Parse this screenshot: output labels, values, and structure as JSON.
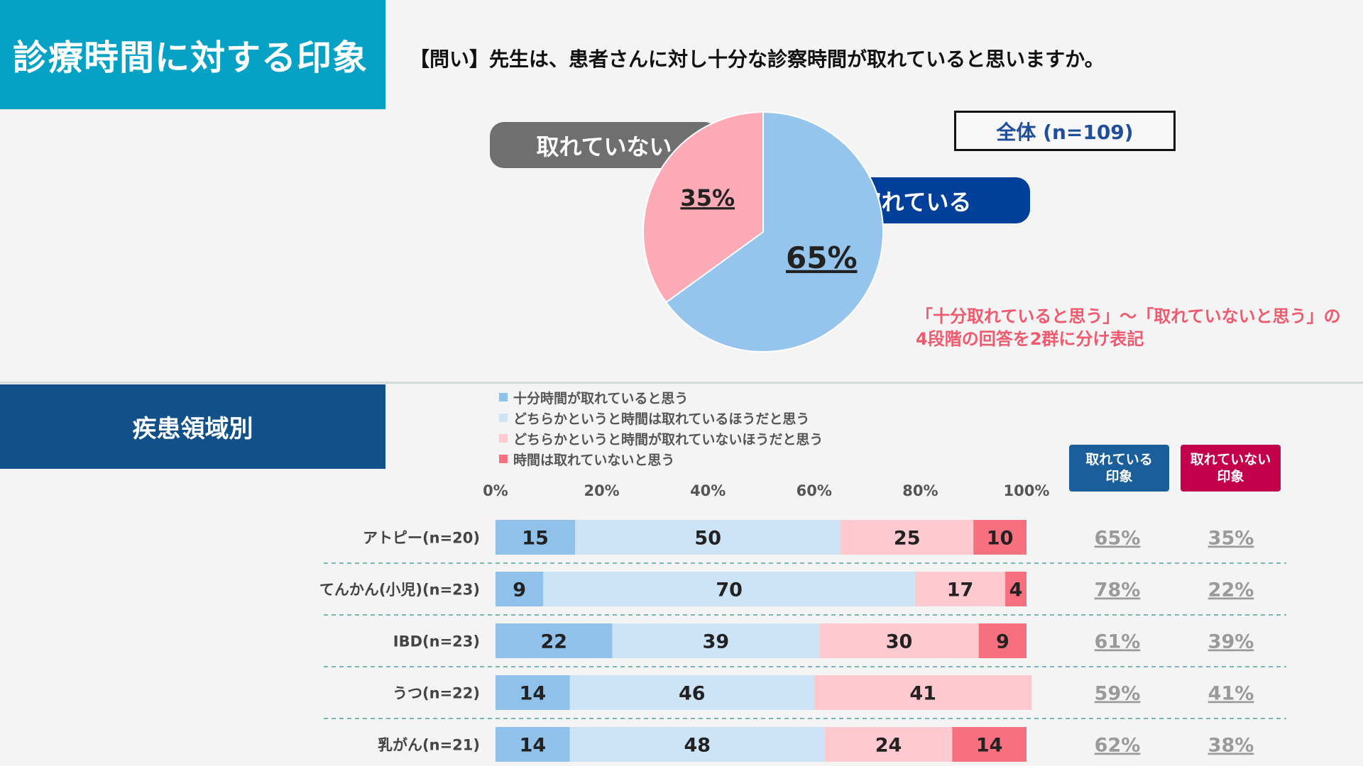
{
  "header": {
    "title": "診療時間に対する印象",
    "question": "【問い】先生は、患者さんに対し十分な診察時間が取れていると思いますか。"
  },
  "pie": {
    "total_label": "全体 (n=109)",
    "label_not": "取れていない",
    "label_yes": "取れている",
    "note_line1": "「十分取れていると思う」〜「取れていないと思う」の",
    "note_line2": "4段階の回答を2群に分け表記"
  },
  "section": {
    "title": "疾患領域別",
    "head_yes_line1": "取れている",
    "head_yes_line2": "印象",
    "head_not_line1": "取れていない",
    "head_not_line2": "印象"
  },
  "colors": {
    "pie_yes": "#95c5ec",
    "pie_not": "#fcaab6",
    "s1": "#8fc1ea",
    "s2": "#cde3f6",
    "s3": "#ffc9d0",
    "s4": "#f7707f",
    "divider": "#7ab8b3"
  },
  "chart_data": [
    {
      "type": "pie",
      "slices": [
        {
          "label": "取れている",
          "value": 65,
          "display": "65%"
        },
        {
          "label": "取れていない",
          "value": 35,
          "display": "35%"
        }
      ]
    },
    {
      "type": "bar",
      "orientation": "horizontal-stacked",
      "xlim": [
        0,
        100
      ],
      "ticks": [
        "0%",
        "20%",
        "40%",
        "60%",
        "80%",
        "100%"
      ],
      "categories": [
        "アトピー(n=20)",
        "てんかん(小児)(n=23)",
        "IBD(n=23)",
        "うつ(n=22)",
        "乳がん(n=21)"
      ],
      "series": [
        {
          "name": "十分時間が取れていると思う",
          "values": [
            15,
            9,
            22,
            14,
            14
          ]
        },
        {
          "name": "どちらかというと時間は取れているほうだと思う",
          "values": [
            50,
            70,
            39,
            46,
            48
          ]
        },
        {
          "name": "どちらかというと時間が取れていないほうだと思う",
          "values": [
            25,
            17,
            30,
            41,
            24
          ]
        },
        {
          "name": "時間は取れていないと思う",
          "values": [
            10,
            4,
            9,
            0,
            14
          ]
        }
      ],
      "yes_totals": [
        "65%",
        "78%",
        "61%",
        "59%",
        "62%"
      ],
      "not_totals": [
        "35%",
        "22%",
        "39%",
        "41%",
        "38%"
      ]
    }
  ]
}
